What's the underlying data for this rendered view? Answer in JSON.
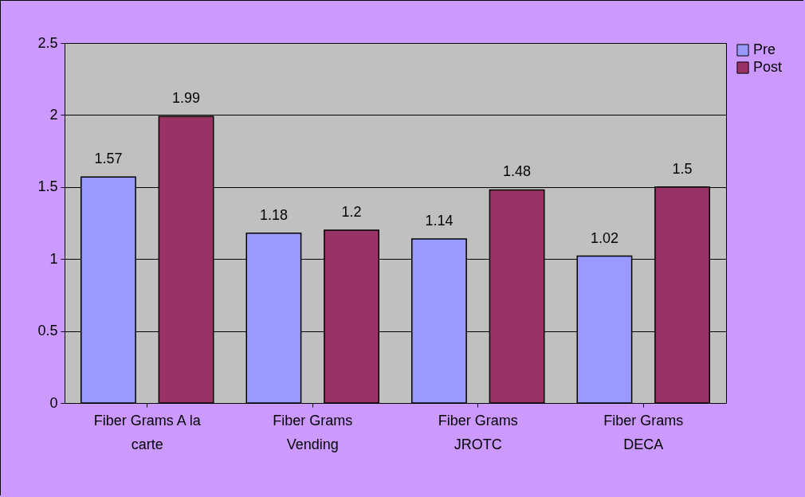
{
  "chart_data": {
    "type": "bar",
    "categories": [
      "Fiber Grams A la carte",
      "Fiber Grams Vending",
      "Fiber Grams JROTC",
      "Fiber Grams DECA"
    ],
    "series": [
      {
        "name": "Pre",
        "color": "#9999ff",
        "values": [
          1.57,
          1.18,
          1.14,
          1.02
        ]
      },
      {
        "name": "Post",
        "color": "#993366",
        "values": [
          1.99,
          1.2,
          1.48,
          1.5
        ]
      }
    ],
    "ylim": [
      0,
      2.5
    ],
    "yticks": [
      0,
      0.5,
      1,
      1.5,
      2,
      2.5
    ],
    "grid": "y",
    "legend": "right",
    "data_labels": true
  }
}
